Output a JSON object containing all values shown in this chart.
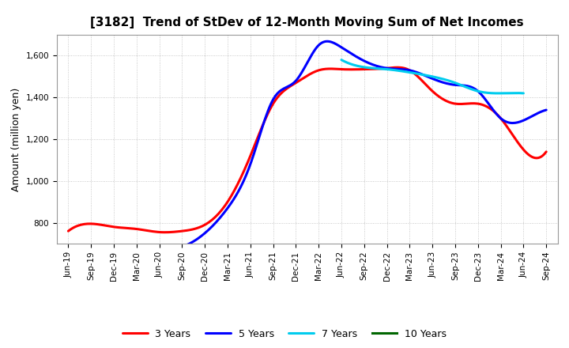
{
  "title": "[3182]  Trend of StDev of 12-Month Moving Sum of Net Incomes",
  "ylabel": "Amount (million yen)",
  "background_color": "#ffffff",
  "grid_color": "#aaaaaa",
  "ylim": [
    700,
    1700
  ],
  "yticks": [
    800,
    1000,
    1200,
    1400,
    1600
  ],
  "series": {
    "3 Years": {
      "color": "#ff0000",
      "values": [
        760,
        795,
        780,
        770,
        755,
        760,
        790,
        900,
        1120,
        1370,
        1470,
        1530,
        1535,
        1535,
        1540,
        1530,
        1430,
        1370,
        1370,
        1300,
        1150,
        1140
      ]
    },
    "5 Years": {
      "color": "#0000ff",
      "values": [
        null,
        null,
        null,
        null,
        680,
        685,
        750,
        870,
        1080,
        1390,
        1480,
        1650,
        1640,
        1575,
        1540,
        1530,
        1490,
        1460,
        1430,
        1300,
        1290,
        1340
      ]
    },
    "7 Years": {
      "color": "#00ccee",
      "values": [
        null,
        null,
        null,
        null,
        null,
        null,
        null,
        null,
        null,
        null,
        null,
        null,
        1580,
        1545,
        1535,
        1520,
        1500,
        1470,
        1430,
        1420,
        1420,
        null
      ]
    },
    "10 Years": {
      "color": "#006600",
      "values": [
        null,
        null,
        null,
        null,
        null,
        null,
        null,
        null,
        null,
        null,
        null,
        null,
        null,
        null,
        null,
        null,
        null,
        null,
        null,
        null,
        null,
        null
      ]
    }
  },
  "xtick_labels": [
    "Jun-19",
    "Sep-19",
    "Dec-19",
    "Mar-20",
    "Jun-20",
    "Sep-20",
    "Dec-20",
    "Mar-21",
    "Jun-21",
    "Sep-21",
    "Dec-21",
    "Mar-22",
    "Jun-22",
    "Sep-22",
    "Dec-22",
    "Mar-23",
    "Jun-23",
    "Sep-23",
    "Dec-23",
    "Mar-24",
    "Jun-24",
    "Sep-24"
  ],
  "legend_order": [
    "3 Years",
    "5 Years",
    "7 Years",
    "10 Years"
  ],
  "line_width": 2.2,
  "figsize": [
    7.2,
    4.4
  ],
  "dpi": 100,
  "title_fontsize": 11,
  "ylabel_fontsize": 9,
  "tick_fontsize": 7.5,
  "legend_fontsize": 9
}
